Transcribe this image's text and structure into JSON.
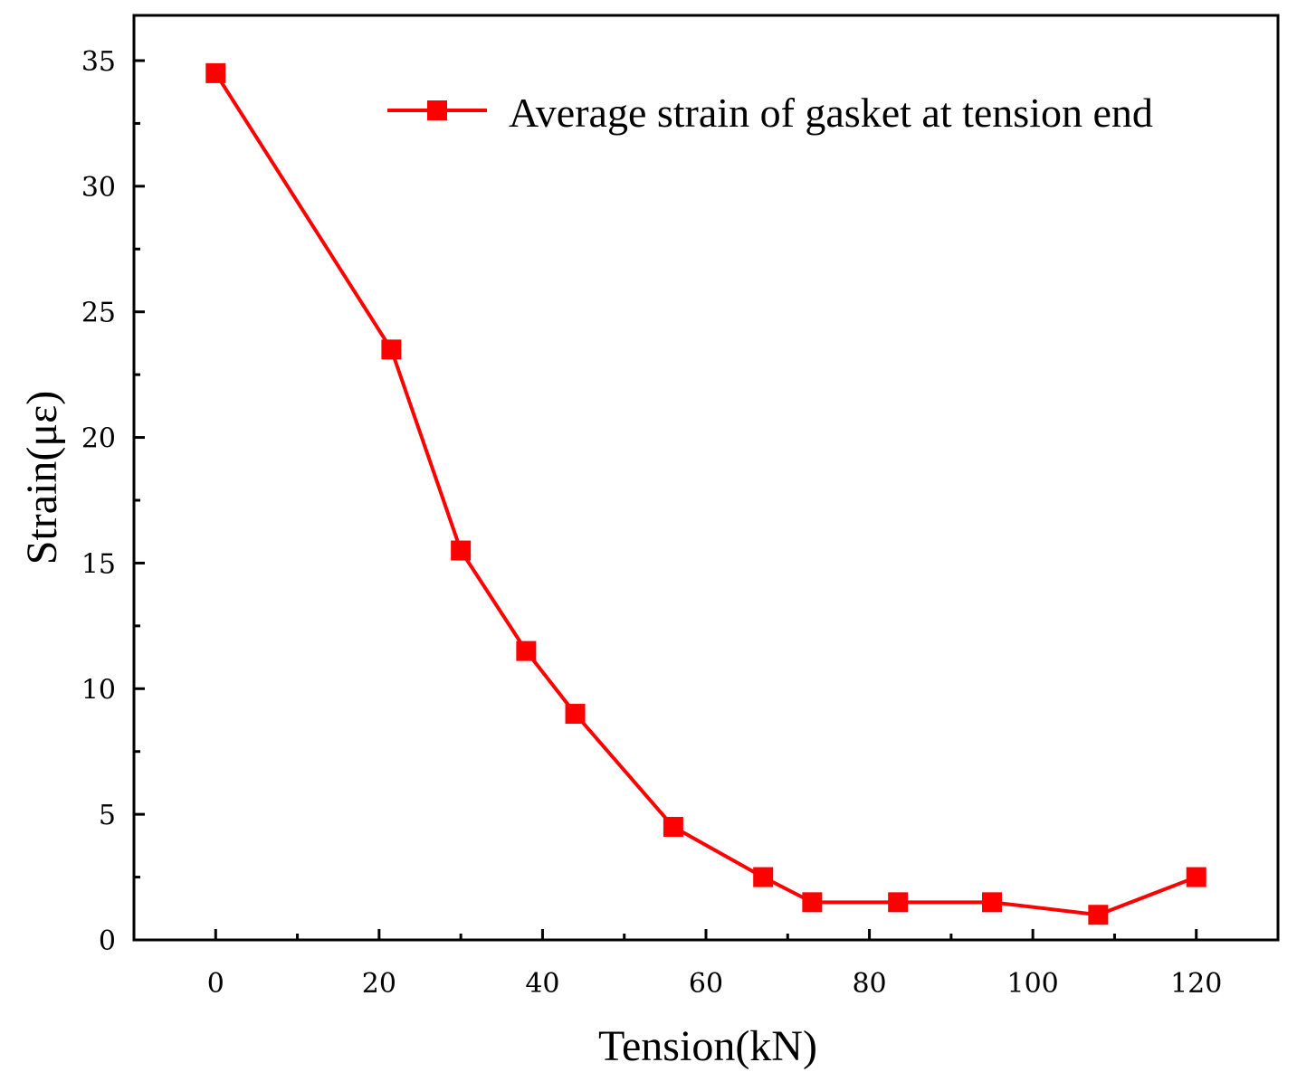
{
  "chart_data": {
    "type": "line",
    "title": "",
    "xlabel": "Tension(kN)",
    "ylabel": "Strain(με)",
    "xlim": [
      -10,
      130
    ],
    "ylim": [
      0,
      35
    ],
    "xticks": [
      0,
      20,
      40,
      60,
      80,
      100,
      120
    ],
    "yticks": [
      0,
      5,
      10,
      15,
      20,
      25,
      30,
      35
    ],
    "grid": false,
    "legend_position": "top-right",
    "series": [
      {
        "name": "Average strain of gasket at tension end",
        "color": "#ff0000",
        "marker": "square",
        "x": [
          0,
          21.5,
          30,
          38,
          44,
          56,
          67,
          73,
          83.5,
          95,
          108,
          120
        ],
        "y": [
          34.5,
          23.5,
          15.5,
          11.5,
          9,
          4.5,
          2.5,
          1.5,
          1.5,
          1.5,
          1,
          2.5
        ]
      }
    ]
  }
}
